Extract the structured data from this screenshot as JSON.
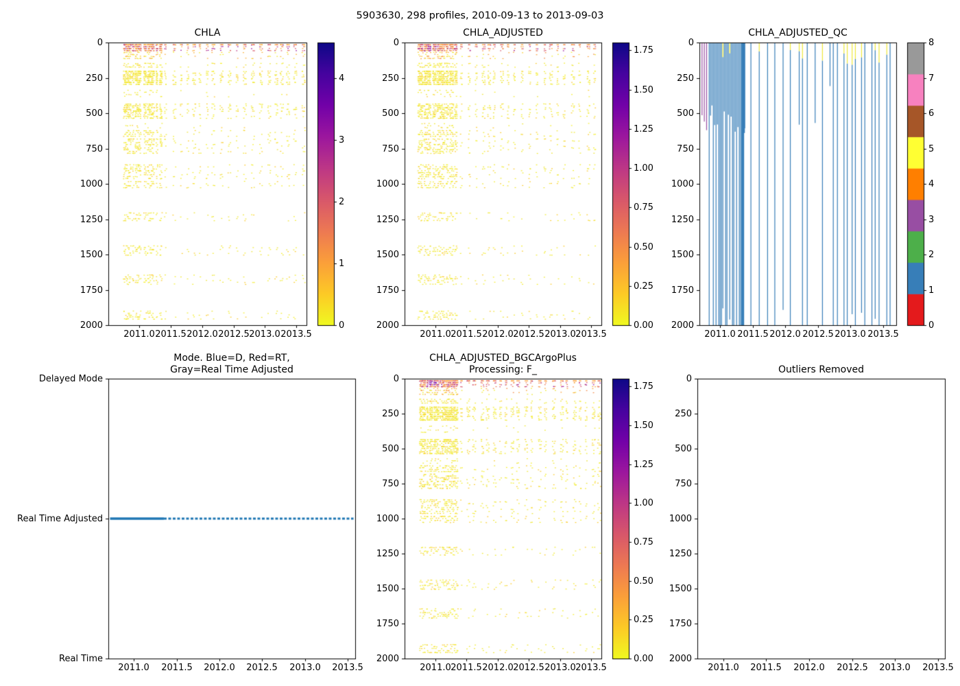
{
  "figure": {
    "title": "5903630, 298 profiles, 2010-09-13 to 2013-09-03",
    "float_id": "5903630",
    "n_profiles": 298,
    "start_date": "2010-09-13",
    "end_date": "2013-09-03",
    "background": "#ffffff"
  },
  "colors": {
    "axis": "#000000",
    "plasma_top_to_bottom": [
      "#0d0887",
      "#46039f",
      "#7201a8",
      "#9c179e",
      "#bd3786",
      "#d8576b",
      "#ed7953",
      "#fb9f3a",
      "#fdca26",
      "#f0f921"
    ],
    "qc_set1_bottom_to_top": [
      "#e41a1c",
      "#377eb8",
      "#4daf4a",
      "#984ea3",
      "#ff7f00",
      "#ffff33",
      "#a65628",
      "#f781bf",
      "#999999"
    ],
    "mode_line": "#1f77b4"
  },
  "scatter_palettes": {
    "surface_chla": [
      "#fbaf35",
      "#fbaf35",
      "#fca636",
      "#f58a46",
      "#ed7953",
      "#d8576b",
      "#bd3786",
      "#9c179e"
    ],
    "surface_adj": [
      "#fba238",
      "#fba238",
      "#f58a46",
      "#ed7953",
      "#d8576b",
      "#c23a85",
      "#9c179e"
    ],
    "yellow": [
      "#f0e92a",
      "#f2ec28",
      "#ede42e",
      "#f6ef25",
      "#fdca26"
    ],
    "purple_cluster": [
      "#8606a6",
      "#9c179e",
      "#7201a8"
    ],
    "sparse_red": "#d8576b"
  },
  "chart_data": [
    {
      "id": "chla",
      "type": "scatter",
      "title": "CHLA",
      "seed": 7,
      "xlim": [
        2010.51,
        2013.66
      ],
      "ylim": [
        2000,
        0
      ],
      "grid": false,
      "xticks": [
        2011.0,
        2011.5,
        2012.0,
        2012.5,
        2013.0,
        2013.5
      ],
      "xtick_labels": [
        "2011.0",
        "2011.5",
        "2012.0",
        "2012.5",
        "2013.0",
        "2013.5"
      ],
      "yticks": [
        0,
        250,
        500,
        750,
        1000,
        1250,
        1500,
        1750,
        2000
      ],
      "ytick_labels": [
        "0",
        "250",
        "500",
        "750",
        "1000",
        "1250",
        "1500",
        "1750",
        "2000"
      ],
      "colorbar": {
        "kind": "plasma_r",
        "vmax": 4.58,
        "ticks": [
          0,
          1,
          2,
          3,
          4
        ],
        "tick_labels": [
          "0",
          "1",
          "2",
          "3",
          "4"
        ]
      },
      "profiles": {
        "dense": [
          2010.72,
          2011.35,
          0.014
        ],
        "sparse": [
          2011.4,
          2013.62
        ]
      },
      "surface_palette": "surface_chla",
      "bands": [
        {
          "top": 8,
          "bottom": 62,
          "density": 1.0,
          "kind": "surface"
        },
        {
          "top": 62,
          "bottom": 118,
          "density": 0.28,
          "kind": "mixed"
        },
        {
          "top": 140,
          "bottom": 178,
          "density": 0.32,
          "kind": "yellow"
        },
        {
          "top": 196,
          "bottom": 300,
          "density": 0.95,
          "kind": "yellow"
        },
        {
          "top": 330,
          "bottom": 388,
          "density": 0.1,
          "kind": "yellow"
        },
        {
          "top": 428,
          "bottom": 540,
          "density": 0.55,
          "kind": "yellow"
        },
        {
          "top": 565,
          "bottom": 608,
          "density": 0.1,
          "kind": "yellow"
        },
        {
          "top": 615,
          "bottom": 668,
          "density": 0.28,
          "kind": "yellow"
        },
        {
          "top": 676,
          "bottom": 788,
          "density": 0.3,
          "kind": "yellow"
        },
        {
          "top": 858,
          "bottom": 968,
          "density": 0.3,
          "kind": "yellow"
        },
        {
          "top": 976,
          "bottom": 1032,
          "density": 0.26,
          "kind": "yellow"
        },
        {
          "top": 1198,
          "bottom": 1265,
          "density": 0.22,
          "kind": "yellow"
        },
        {
          "top": 1432,
          "bottom": 1508,
          "density": 0.22,
          "kind": "yellow"
        },
        {
          "top": 1638,
          "bottom": 1715,
          "density": 0.22,
          "kind": "yellow"
        },
        {
          "top": 1893,
          "bottom": 1962,
          "density": 0.24,
          "kind": "yellow"
        }
      ]
    },
    {
      "id": "chla_adjusted",
      "type": "scatter",
      "title": "CHLA_ADJUSTED",
      "seed": 11,
      "xlim": [
        2010.51,
        2013.66
      ],
      "ylim": [
        2000,
        0
      ],
      "grid": false,
      "xticks": [
        2011.0,
        2011.5,
        2012.0,
        2012.5,
        2013.0,
        2013.5
      ],
      "xtick_labels": [
        "2011.0",
        "2011.5",
        "2012.0",
        "2012.5",
        "2013.0",
        "2013.5"
      ],
      "yticks": [
        0,
        250,
        500,
        750,
        1000,
        1250,
        1500,
        1750,
        2000
      ],
      "ytick_labels": [
        "0",
        "250",
        "500",
        "750",
        "1000",
        "1250",
        "1500",
        "1750",
        "2000"
      ],
      "colorbar": {
        "kind": "plasma_r",
        "vmax": 1.8,
        "ticks": [
          0,
          0.25,
          0.5,
          0.75,
          1.0,
          1.25,
          1.5,
          1.75
        ],
        "tick_labels": [
          "0.00",
          "0.25",
          "0.50",
          "0.75",
          "1.00",
          "1.25",
          "1.50",
          "1.75"
        ]
      },
      "profiles": {
        "dense": [
          2010.72,
          2011.35,
          0.014
        ],
        "sparse": [
          2011.4,
          2013.62
        ]
      },
      "surface_palette": "surface_adj",
      "purple_cluster": [
        2010.86,
        2011.04
      ],
      "bands": [
        {
          "top": 8,
          "bottom": 62,
          "density": 1.0,
          "kind": "surface"
        },
        {
          "top": 62,
          "bottom": 118,
          "density": 0.28,
          "kind": "mixed"
        },
        {
          "top": 140,
          "bottom": 178,
          "density": 0.32,
          "kind": "yellow"
        },
        {
          "top": 196,
          "bottom": 300,
          "density": 0.95,
          "kind": "yellow"
        },
        {
          "top": 330,
          "bottom": 388,
          "density": 0.1,
          "kind": "yellow"
        },
        {
          "top": 428,
          "bottom": 540,
          "density": 0.55,
          "kind": "yellow"
        },
        {
          "top": 565,
          "bottom": 608,
          "density": 0.1,
          "kind": "yellow"
        },
        {
          "top": 615,
          "bottom": 668,
          "density": 0.28,
          "kind": "yellow"
        },
        {
          "top": 676,
          "bottom": 788,
          "density": 0.3,
          "kind": "yellow"
        },
        {
          "top": 858,
          "bottom": 968,
          "density": 0.3,
          "kind": "yellow"
        },
        {
          "top": 976,
          "bottom": 1032,
          "density": 0.26,
          "kind": "yellow"
        },
        {
          "top": 1198,
          "bottom": 1265,
          "density": 0.22,
          "kind": "yellow"
        },
        {
          "top": 1432,
          "bottom": 1508,
          "density": 0.22,
          "kind": "yellow"
        },
        {
          "top": 1638,
          "bottom": 1715,
          "density": 0.22,
          "kind": "yellow"
        },
        {
          "top": 1893,
          "bottom": 1962,
          "density": 0.24,
          "kind": "yellow"
        }
      ]
    },
    {
      "id": "chla_adjusted_qc",
      "type": "qc_lines",
      "title": "CHLA_ADJUSTED_QC",
      "seed": 31,
      "xlim": [
        2010.68,
        2013.7
      ],
      "ylim": [
        2000,
        0
      ],
      "grid": false,
      "xticks": [
        2011.0,
        2011.5,
        2012.0,
        2012.5,
        2013.0,
        2013.5
      ],
      "xtick_labels": [
        "2011.0",
        "2011.5",
        "2012.0",
        "2012.5",
        "2013.0",
        "2013.5"
      ],
      "yticks": [
        0,
        250,
        500,
        750,
        1000,
        1250,
        1500,
        1750,
        2000
      ],
      "ytick_labels": [
        "0",
        "250",
        "500",
        "750",
        "1000",
        "1250",
        "1500",
        "1750",
        "2000"
      ],
      "colorbar": {
        "kind": "qc_discrete",
        "blocks": 9,
        "ticks": [
          0,
          1,
          2,
          3,
          4,
          5,
          6,
          7,
          8
        ],
        "tick_labels": [
          "0",
          "1",
          "2",
          "3",
          "4",
          "5",
          "6",
          "7",
          "8"
        ]
      },
      "qc": {
        "purple_lines": [
          {
            "x": 2010.72,
            "to": 515
          },
          {
            "x": 2010.755,
            "to": 560
          },
          {
            "x": 2010.79,
            "to": 620
          }
        ],
        "dense_range": [
          2010.83,
          2011.38,
          0.021
        ],
        "thick_line": {
          "x": 2011.345,
          "width": 4
        },
        "sparse_range": [
          2011.47,
          2013.64
        ],
        "line_color": "#377eb8",
        "cap_color": "#eee83a",
        "purple_color": "#984ea3"
      }
    },
    {
      "id": "mode",
      "type": "mode_line",
      "title": "Mode. Blue=D, Red=RT,\nGray=Real Time Adjusted",
      "xlim": [
        2010.7,
        2013.59
      ],
      "grid": false,
      "xticks": [
        2011.0,
        2011.5,
        2012.0,
        2012.5,
        2013.0,
        2013.5
      ],
      "xtick_labels": [
        "2011.0",
        "2011.5",
        "2012.0",
        "2012.5",
        "2013.0",
        "2013.5"
      ],
      "ytick_labels": [
        "Delayed Mode",
        "Real Time Adjusted",
        "Real Time"
      ],
      "line": {
        "level": "Real Time Adjusted",
        "solid": [
          2010.72,
          2011.35
        ],
        "dashed": [
          2011.35,
          2013.57
        ],
        "color": "#1f77b4"
      }
    },
    {
      "id": "bgc",
      "type": "scatter",
      "title": "CHLA_ADJUSTED_BGCArgoPlus\nProcessing: F_",
      "seed": 23,
      "xlim": [
        2010.51,
        2013.66
      ],
      "ylim": [
        2000,
        0
      ],
      "grid": false,
      "xticks": [
        2011.0,
        2011.5,
        2012.0,
        2012.5,
        2013.0,
        2013.5
      ],
      "xtick_labels": [
        "2011.0",
        "2011.5",
        "2012.0",
        "2012.5",
        "2013.0",
        "2013.5"
      ],
      "yticks": [
        0,
        250,
        500,
        750,
        1000,
        1250,
        1500,
        1750,
        2000
      ],
      "ytick_labels": [
        "0",
        "250",
        "500",
        "750",
        "1000",
        "1250",
        "1500",
        "1750",
        "2000"
      ],
      "colorbar": {
        "kind": "plasma_r",
        "vmax": 1.8,
        "ticks": [
          0,
          0.25,
          0.5,
          0.75,
          1.0,
          1.25,
          1.5,
          1.75
        ],
        "tick_labels": [
          "0.00",
          "0.25",
          "0.50",
          "0.75",
          "1.00",
          "1.25",
          "1.50",
          "1.75"
        ]
      },
      "profiles": {
        "dense": [
          2010.72,
          2011.35,
          0.014
        ],
        "sparse": [
          2011.4,
          2013.62
        ]
      },
      "surface_palette": "surface_adj",
      "purple_cluster": [
        2010.86,
        2011.04
      ],
      "bands": [
        {
          "top": 8,
          "bottom": 62,
          "density": 1.0,
          "kind": "surface"
        },
        {
          "top": 62,
          "bottom": 118,
          "density": 0.28,
          "kind": "mixed"
        },
        {
          "top": 140,
          "bottom": 178,
          "density": 0.32,
          "kind": "yellow"
        },
        {
          "top": 196,
          "bottom": 300,
          "density": 0.95,
          "kind": "yellow"
        },
        {
          "top": 330,
          "bottom": 388,
          "density": 0.1,
          "kind": "yellow"
        },
        {
          "top": 428,
          "bottom": 540,
          "density": 0.55,
          "kind": "yellow"
        },
        {
          "top": 565,
          "bottom": 608,
          "density": 0.1,
          "kind": "yellow"
        },
        {
          "top": 615,
          "bottom": 668,
          "density": 0.28,
          "kind": "yellow"
        },
        {
          "top": 676,
          "bottom": 788,
          "density": 0.3,
          "kind": "yellow"
        },
        {
          "top": 858,
          "bottom": 968,
          "density": 0.3,
          "kind": "yellow"
        },
        {
          "top": 976,
          "bottom": 1032,
          "density": 0.26,
          "kind": "yellow"
        },
        {
          "top": 1198,
          "bottom": 1265,
          "density": 0.22,
          "kind": "yellow"
        },
        {
          "top": 1432,
          "bottom": 1508,
          "density": 0.22,
          "kind": "yellow"
        },
        {
          "top": 1638,
          "bottom": 1715,
          "density": 0.22,
          "kind": "yellow"
        },
        {
          "top": 1893,
          "bottom": 1962,
          "density": 0.24,
          "kind": "yellow"
        }
      ]
    },
    {
      "id": "outliers",
      "type": "empty",
      "title": "Outliers Removed",
      "xlim": [
        2010.7,
        2013.58
      ],
      "ylim": [
        2000,
        0
      ],
      "grid": false,
      "xticks": [
        2011.0,
        2011.5,
        2012.0,
        2012.5,
        2013.0,
        2013.5
      ],
      "xtick_labels": [
        "2011.0",
        "2011.5",
        "2012.0",
        "2012.5",
        "2013.0",
        "2013.5"
      ],
      "yticks": [
        0,
        250,
        500,
        750,
        1000,
        1250,
        1500,
        1750,
        2000
      ],
      "ytick_labels": [
        "0",
        "250",
        "500",
        "750",
        "1000",
        "1250",
        "1500",
        "1750",
        "2000"
      ]
    }
  ]
}
